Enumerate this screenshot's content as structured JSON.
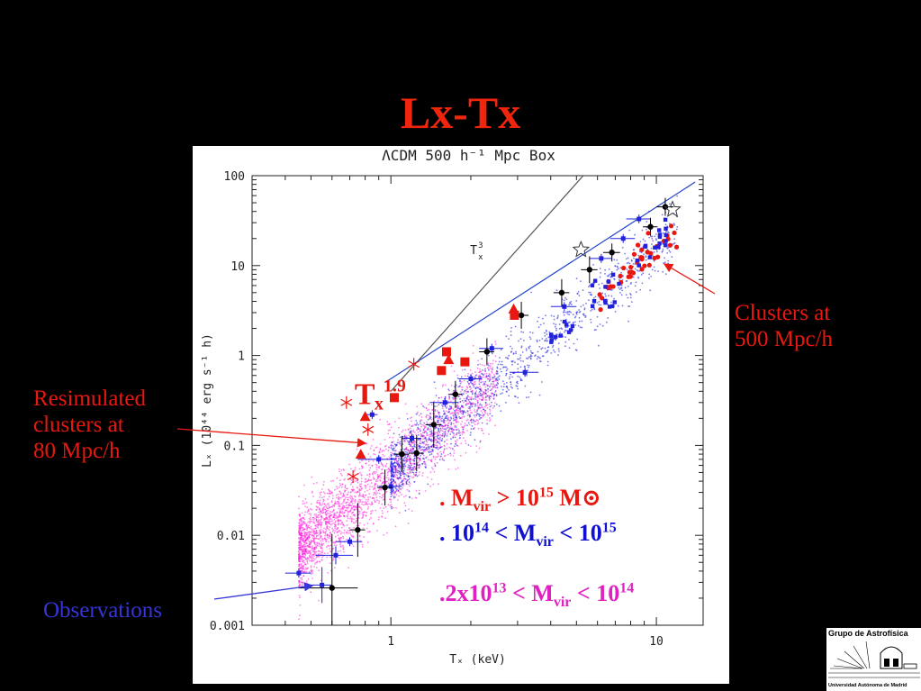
{
  "slide": {
    "title": "Lx-Tx",
    "annotations": {
      "clusters_500": [
        "Clusters at",
        "500 Mpc/h"
      ],
      "resimulated": [
        "Resimulated",
        "clusters at",
        "80 Mpc/h"
      ],
      "observations": "Observations"
    },
    "legend": {
      "massive": {
        "prefix": ". M",
        "sub": "vir",
        "mid": " > 10",
        "sup": "15",
        "suffix": " M⊙",
        "color": "#e81810"
      },
      "intermediate": {
        "prefix": ". 10",
        "sup1": "14",
        "mid1": "  < M",
        "sub": "vir",
        "mid2": " < 10",
        "sup2": "15",
        "color": "#1010d0"
      },
      "small": {
        "prefix": ".2x10",
        "sup1": "13",
        "mid1": " < M",
        "sub": "vir",
        "mid2": " < 10",
        "sup2": "14",
        "color": "#e020c0"
      }
    },
    "logo": {
      "top": "Grupo de Astrofísica",
      "bottom": "Universidad Autónoma de Madrid"
    }
  },
  "chart_data": {
    "type": "scatter",
    "title": "ΛCDM 500 h⁻¹ Mpc Box",
    "xlabel": "Tₓ (keV)",
    "ylabel": "Lₓ (10⁴⁴ erg s⁻¹ h)",
    "x_scale": "log",
    "y_scale": "log",
    "xlim": [
      0.3,
      15
    ],
    "ylim": [
      0.001,
      100
    ],
    "x_ticks": [
      {
        "value": 1,
        "label": "1"
      },
      {
        "value": 10,
        "label": "10"
      }
    ],
    "y_ticks": [
      {
        "value": 0.001,
        "label": "0.001"
      },
      {
        "value": 0.01,
        "label": "0.01"
      },
      {
        "value": 0.1,
        "label": "0.1"
      },
      {
        "value": 1,
        "label": "1"
      },
      {
        "value": 10,
        "label": "10"
      },
      {
        "value": 100,
        "label": "100"
      }
    ],
    "reference_lines": [
      {
        "label": "Tₓ³",
        "color": "#555555",
        "x": [
          1.0,
          5.3
        ],
        "y": [
          0.4,
          100
        ]
      },
      {
        "label": "Tₓ 1.9",
        "color": "#2244cc",
        "x": [
          0.95,
          14
        ],
        "y": [
          0.5,
          85
        ]
      }
    ],
    "series": [
      {
        "name": "simulated clusters 2x10^13 < Mvir < 10^14",
        "color": "#ff22dd",
        "marker": "dot",
        "fit": {
          "norm": 0.05,
          "slope": 2.5,
          "x_range": [
            0.45,
            2.5
          ],
          "scatter_dex": 0.22
        }
      },
      {
        "name": "simulated clusters 10^14 < Mvir < 10^15",
        "color": "#2222dd",
        "marker": "dot",
        "fit": {
          "norm": 0.05,
          "slope": 2.5,
          "x_range": [
            1.0,
            12
          ],
          "scatter_dex": 0.18
        }
      },
      {
        "name": "Resimulated clusters at 80 Mpc/h (triangles)",
        "color": "#e81810",
        "marker": "triangle",
        "x": [
          0.8,
          0.77,
          1.65,
          2.9
        ],
        "y": [
          0.21,
          0.08,
          0.9,
          3.3
        ]
      },
      {
        "name": "Resimulated clusters at 80 Mpc/h (squares)",
        "color": "#e81810",
        "marker": "square",
        "x": [
          1.03,
          1.55,
          1.62,
          1.9,
          2.92
        ],
        "y": [
          0.34,
          0.68,
          1.1,
          0.85,
          2.8
        ]
      },
      {
        "name": "Resimulated clusters at 80 Mpc/h (asterisks)",
        "color": "#e81810",
        "marker": "asterisk",
        "x": [
          0.72,
          0.82,
          1.22,
          0.68
        ],
        "y": [
          0.045,
          0.15,
          0.8,
          0.3
        ]
      },
      {
        "name": "stars",
        "color": "#333333",
        "marker": "star",
        "x": [
          5.2,
          11.5
        ],
        "y": [
          15,
          42
        ]
      },
      {
        "name": "Observations",
        "color": "#000000",
        "marker": "errorbar",
        "x": [
          0.6,
          0.75,
          0.95,
          1.1,
          1.25,
          1.45,
          1.75,
          2.3,
          3.1,
          4.4,
          5.6,
          6.8,
          9.5,
          10.8
        ],
        "y": [
          0.0026,
          0.0115,
          0.034,
          0.08,
          0.082,
          0.17,
          0.37,
          1.1,
          2.8,
          5.0,
          9.0,
          14,
          27,
          45
        ],
        "err_x": [
          0.15,
          0.05,
          0.06,
          0.07,
          0.08,
          0.1,
          0.1,
          0.15,
          0.2,
          0.3,
          0.4,
          0.5,
          0.6,
          0.8
        ],
        "err_y_dex": [
          0.6,
          0.3,
          0.2,
          0.2,
          0.2,
          0.25,
          0.15,
          0.15,
          0.15,
          0.15,
          0.15,
          0.1,
          0.1,
          0.1
        ]
      },
      {
        "name": "blue observed data points",
        "color": "#2222dd",
        "marker": "errorbar",
        "x": [
          0.45,
          0.55,
          0.62,
          0.7,
          0.85,
          0.9,
          1.0,
          1.2,
          1.6,
          2.0,
          2.4,
          3.2,
          4.5,
          6.2,
          7.5,
          8.6
        ],
        "y": [
          0.0038,
          0.0028,
          0.006,
          0.0085,
          0.22,
          0.07,
          0.035,
          0.12,
          0.3,
          0.55,
          1.2,
          0.65,
          3.5,
          12,
          20,
          33
        ],
        "err_x": [
          0.05,
          0.05,
          0.1,
          0.08,
          0.04,
          0.15,
          0.1,
          0.1,
          0.2,
          0.2,
          0.25,
          0.4,
          0.5,
          0.6,
          0.8,
          0.9
        ],
        "err_y_dex": [
          0.05,
          0.2,
          0.1,
          0.05,
          0.05,
          0.05,
          0.05,
          0.05,
          0.05,
          0.05,
          0.05,
          0.05,
          0.05,
          0.05,
          0.05,
          0.05
        ]
      }
    ]
  }
}
